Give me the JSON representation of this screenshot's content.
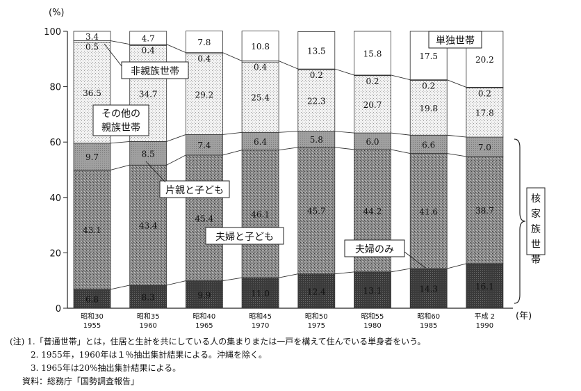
{
  "chart_data": {
    "type": "bar",
    "stacked": true,
    "ylabel": "(%)",
    "xunit": "(年)",
    "ylim": [
      0,
      100
    ],
    "yticks": [
      0,
      20,
      40,
      60,
      80,
      100
    ],
    "categories": [
      {
        "era": "昭和30",
        "year": "1955"
      },
      {
        "era": "昭和35",
        "year": "1960"
      },
      {
        "era": "昭和40",
        "year": "1965"
      },
      {
        "era": "昭和45",
        "year": "1970"
      },
      {
        "era": "昭和50",
        "year": "1975"
      },
      {
        "era": "昭和55",
        "year": "1980"
      },
      {
        "era": "昭和60",
        "year": "1985"
      },
      {
        "era": "平成 2",
        "year": "1990"
      }
    ],
    "series": [
      {
        "name": "夫婦のみ",
        "color": "#3a3a3a",
        "values": [
          6.8,
          8.3,
          9.9,
          11.0,
          12.4,
          13.1,
          14.3,
          16.1
        ]
      },
      {
        "name": "夫婦と子ども",
        "color": "#8a8a8a",
        "values": [
          43.1,
          43.4,
          45.4,
          46.1,
          45.7,
          44.2,
          41.6,
          38.7
        ]
      },
      {
        "name": "片親と子ども",
        "color": "#9e9e9e",
        "values": [
          9.7,
          8.5,
          7.4,
          6.4,
          5.8,
          6.0,
          6.6,
          7.0
        ]
      },
      {
        "name": "その他の親族世帯",
        "color": "#ececec",
        "values": [
          36.5,
          34.7,
          29.2,
          25.4,
          22.3,
          20.7,
          19.8,
          17.8
        ]
      },
      {
        "name": "非親族世帯",
        "color": "#ffffff",
        "values": [
          0.5,
          0.4,
          0.4,
          0.4,
          0.2,
          0.2,
          0.2,
          0.2
        ]
      },
      {
        "name": "単独世帯",
        "color": "#ffffff",
        "values": [
          3.4,
          4.7,
          7.8,
          10.8,
          13.5,
          15.8,
          17.5,
          20.2
        ]
      }
    ],
    "annotations": {
      "single": "単独世帯",
      "non_kin": "非親族世帯",
      "other_kin_line1": "その他の",
      "other_kin_line2": "親族世帯",
      "single_parent": "片親と子ども",
      "couple_children": "夫婦と子ども",
      "couple_only": "夫婦のみ",
      "nuclear": "核家族世帯"
    }
  },
  "notes": {
    "note1": "(注) 1.「普通世帯」とは，住居と生計を共にしている人の集まりまたは一戸を構えて住んでいる単身者をいう。",
    "note2": "2. 1955年，1960年は１％抽出集計結果による。沖縄を除く。",
    "note3": "3. 1965年は20%抽出集計結果による。",
    "source": "資料：総務庁「国勢調査報告」"
  }
}
